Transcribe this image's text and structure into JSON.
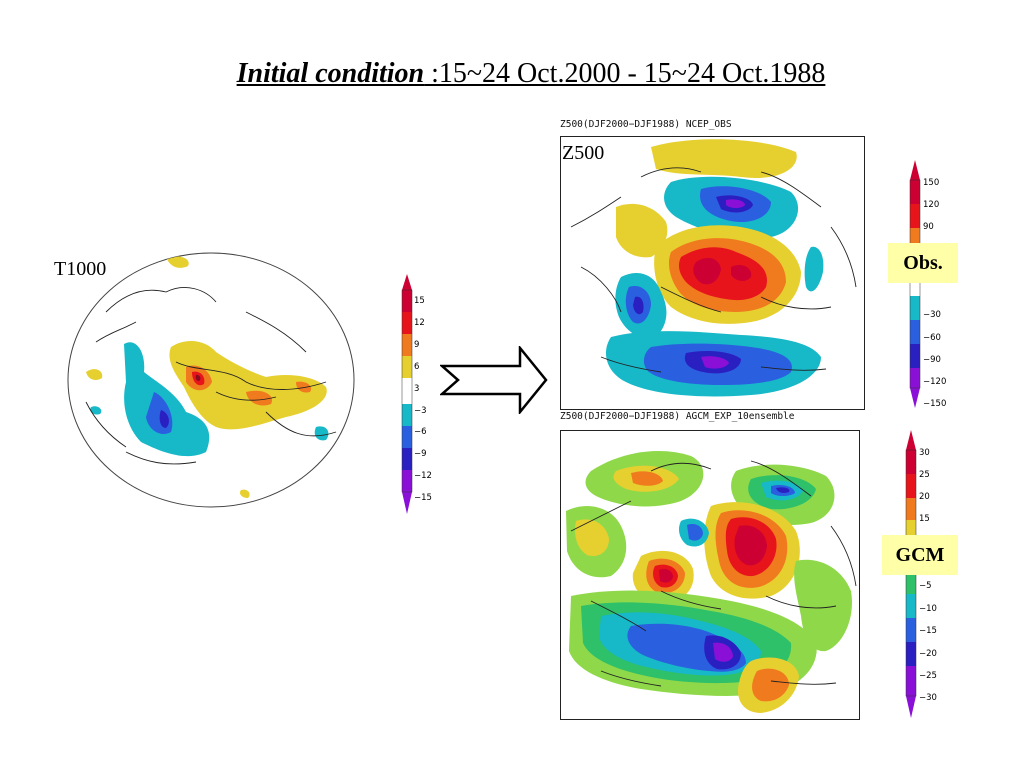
{
  "title": {
    "emph": "Initial condition",
    "rest": " :15~24 Oct.2000 - 15~24 Oct.1988"
  },
  "left_panel": {
    "label": "T1000",
    "colorbar": [
      "15",
      "12",
      "9",
      "6",
      "3",
      "−3",
      "−6",
      "−9",
      "−12",
      "−15"
    ]
  },
  "arrow": {
    "icon": "right-arrow-icon"
  },
  "top_panel": {
    "caption": "Z500(DJF2000−DJF1988) NCEP_OBS",
    "label": "Z500",
    "tag": "Obs.",
    "colorbar": [
      "150",
      "120",
      "90",
      "−30",
      "−60",
      "−90",
      "−120",
      "−150"
    ]
  },
  "bottom_panel": {
    "caption": "Z500(DJF2000−DJF1988) AGCM_EXP_10ensemble",
    "tag": "GCM",
    "colorbar": [
      "30",
      "25",
      "20",
      "15",
      "−5",
      "−10",
      "−15",
      "−20",
      "−25",
      "−30"
    ]
  },
  "colors": {
    "deep_red": "#cc0033",
    "red": "#e8141c",
    "orange": "#f07a1e",
    "yellow": "#e6d030",
    "lightgreen": "#8fd84a",
    "green": "#2fc06a",
    "cyan": "#17b8c8",
    "blue": "#2a5fe0",
    "navy": "#2a1fc0",
    "purple": "#8a10d8"
  }
}
